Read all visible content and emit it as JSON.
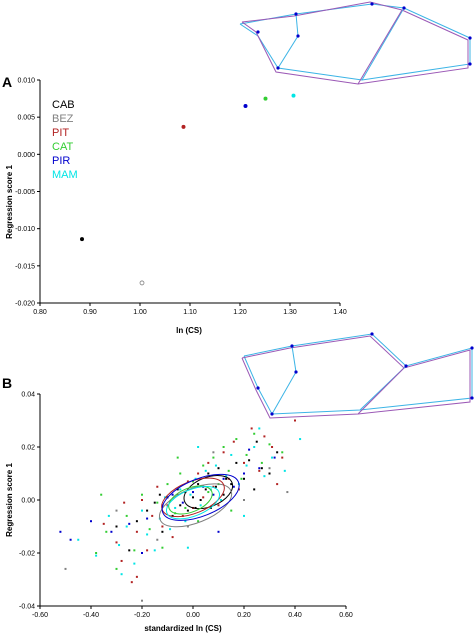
{
  "colors": {
    "CAB": "#000000",
    "BEZ": "#808080",
    "PIT": "#b22222",
    "CAT": "#32cd32",
    "PIR": "#0000cd",
    "MAM": "#00e5e5",
    "outline_a": "#3cb4e6",
    "outline_b": "#9b59b6"
  },
  "chart_data": [
    {
      "panel": "A",
      "type": "scatter",
      "xlabel": "ln (CS)",
      "ylabel": "Regression score 1",
      "xlim": [
        0.8,
        1.4
      ],
      "ylim": [
        -0.02,
        0.01
      ],
      "x_ticks": [
        "0.80",
        "0.90",
        "1.00",
        "1.10",
        "1.20",
        "1.30",
        "1.40"
      ],
      "y_ticks": [
        "0.010",
        "0.005",
        "0.000",
        "-0.005",
        "-0.010",
        "-0.015",
        "-0.020"
      ],
      "legend": [
        "CAB",
        "BEZ",
        "PIT",
        "CAT",
        "PIR",
        "MAM"
      ],
      "legend_position": "top-left",
      "series": [
        {
          "name": "CAB",
          "x": 0.884,
          "y": -0.0114
        },
        {
          "name": "BEZ",
          "x": 1.004,
          "y": -0.0173
        },
        {
          "name": "PIT",
          "x": 1.087,
          "y": 0.0037
        },
        {
          "name": "PIR",
          "x": 1.211,
          "y": 0.0065
        },
        {
          "name": "CAT",
          "x": 1.251,
          "y": 0.0075
        },
        {
          "name": "MAM",
          "x": 1.307,
          "y": 0.0079
        }
      ]
    },
    {
      "panel": "B",
      "type": "scatter",
      "xlabel": "standardized ln (CS)",
      "ylabel": "Regression score 1",
      "xlim": [
        -0.6,
        0.6
      ],
      "ylim": [
        -0.04,
        0.04
      ],
      "x_ticks": [
        "-0.60",
        "-0.40",
        "-0.20",
        "0.00",
        "0.20",
        "0.40",
        "0.60"
      ],
      "y_ticks": [
        "0.04",
        "0.02",
        "0.00",
        "-0.02",
        "-0.04"
      ],
      "series": [
        {
          "name": "CAB",
          "points": [
            [
              -0.25,
              -0.019
            ],
            [
              -0.22,
              -0.008
            ],
            [
              -0.2,
              -0.02
            ],
            [
              -0.18,
              -0.004
            ],
            [
              -0.15,
              -0.001
            ],
            [
              -0.13,
              0.002
            ],
            [
              -0.12,
              -0.012
            ],
            [
              -0.1,
              0.001
            ],
            [
              -0.08,
              -0.006
            ],
            [
              -0.06,
              0.004
            ],
            [
              -0.05,
              -0.002
            ],
            [
              -0.03,
              0.003
            ],
            [
              -0.02,
              -0.004
            ],
            [
              0.0,
              0.001
            ],
            [
              0.01,
              -0.003
            ],
            [
              0.02,
              0.006
            ],
            [
              0.03,
              0.0
            ],
            [
              0.05,
              0.004
            ],
            [
              0.06,
              0.01
            ],
            [
              0.07,
              -0.003
            ],
            [
              0.09,
              0.005
            ],
            [
              0.1,
              0.012
            ],
            [
              0.12,
              0.002
            ],
            [
              0.13,
              0.008
            ],
            [
              0.15,
              0.006
            ],
            [
              0.17,
              0.014
            ],
            [
              0.2,
              0.008
            ],
            [
              0.22,
              0.015
            ],
            [
              0.24,
              0.004
            ],
            [
              0.27,
              0.012
            ],
            [
              0.3,
              0.01
            ],
            [
              0.33,
              0.018
            ],
            [
              -0.3,
              -0.01
            ],
            [
              0.25,
              0.022
            ]
          ]
        },
        {
          "name": "BEZ",
          "points": [
            [
              -0.5,
              -0.026
            ],
            [
              -0.3,
              -0.004
            ],
            [
              -0.2,
              -0.038
            ],
            [
              -0.14,
              -0.015
            ],
            [
              -0.02,
              -0.01
            ],
            [
              0.08,
              0.018
            ],
            [
              0.2,
              0.0
            ],
            [
              0.3,
              0.012
            ],
            [
              0.37,
              0.003
            ]
          ]
        },
        {
          "name": "PIT",
          "points": [
            [
              -0.35,
              -0.009
            ],
            [
              -0.3,
              -0.016
            ],
            [
              -0.28,
              -0.023
            ],
            [
              -0.27,
              -0.001
            ],
            [
              -0.24,
              -0.031
            ],
            [
              -0.22,
              -0.012
            ],
            [
              -0.2,
              0.0
            ],
            [
              -0.18,
              -0.019
            ],
            [
              -0.16,
              -0.006
            ],
            [
              -0.14,
              0.005
            ],
            [
              -0.12,
              -0.01
            ],
            [
              -0.1,
              -0.002
            ],
            [
              -0.08,
              -0.014
            ],
            [
              -0.06,
              0.002
            ],
            [
              -0.04,
              -0.006
            ],
            [
              -0.02,
              0.007
            ],
            [
              0.0,
              -0.003
            ],
            [
              0.02,
              0.01
            ],
            [
              0.04,
              0.001
            ],
            [
              0.06,
              0.014
            ],
            [
              0.08,
              0.005
            ],
            [
              0.1,
              -0.002
            ],
            [
              0.12,
              0.018
            ],
            [
              0.14,
              0.008
            ],
            [
              0.16,
              0.022
            ],
            [
              0.18,
              0.004
            ],
            [
              0.2,
              0.014
            ],
            [
              0.23,
              0.027
            ],
            [
              0.26,
              0.011
            ],
            [
              0.28,
              0.024
            ],
            [
              0.31,
              0.02
            ],
            [
              0.35,
              0.016
            ],
            [
              0.4,
              0.03
            ],
            [
              0.33,
              0.006
            ],
            [
              -0.22,
              -0.029
            ]
          ]
        },
        {
          "name": "CAT",
          "points": [
            [
              -0.38,
              -0.02
            ],
            [
              -0.34,
              -0.012
            ],
            [
              -0.3,
              -0.026
            ],
            [
              -0.26,
              -0.006
            ],
            [
              -0.23,
              -0.019
            ],
            [
              -0.2,
              0.002
            ],
            [
              -0.17,
              -0.011
            ],
            [
              -0.14,
              -0.001
            ],
            [
              -0.12,
              -0.018
            ],
            [
              -0.1,
              0.006
            ],
            [
              -0.07,
              -0.005
            ],
            [
              -0.05,
              0.01
            ],
            [
              -0.03,
              -0.003
            ],
            [
              0.0,
              0.007
            ],
            [
              0.02,
              -0.008
            ],
            [
              0.04,
              0.013
            ],
            [
              0.06,
              0.003
            ],
            [
              0.08,
              0.016
            ],
            [
              0.1,
              0.006
            ],
            [
              0.12,
              0.02
            ],
            [
              0.14,
              0.011
            ],
            [
              0.17,
              0.023
            ],
            [
              0.19,
              0.008
            ],
            [
              0.21,
              0.017
            ],
            [
              0.24,
              0.025
            ],
            [
              0.27,
              0.014
            ],
            [
              0.3,
              0.021
            ],
            [
              0.35,
              0.018
            ],
            [
              -0.36,
              0.002
            ],
            [
              0.15,
              -0.004
            ],
            [
              -0.06,
              0.016
            ]
          ]
        },
        {
          "name": "PIR",
          "points": [
            [
              -0.52,
              -0.012
            ],
            [
              -0.48,
              -0.015
            ],
            [
              -0.4,
              -0.008
            ],
            [
              -0.32,
              -0.012
            ],
            [
              -0.25,
              -0.009
            ],
            [
              -0.18,
              -0.007
            ],
            [
              -0.12,
              -0.002
            ],
            [
              -0.08,
              0.002
            ],
            [
              -0.04,
              -0.001
            ],
            [
              0.0,
              0.003
            ],
            [
              0.04,
              0.005
            ],
            [
              0.08,
              0.002
            ],
            [
              0.12,
              0.008
            ],
            [
              0.16,
              0.005
            ],
            [
              0.2,
              0.01
            ],
            [
              0.26,
              0.012
            ],
            [
              0.32,
              0.016
            ],
            [
              0.1,
              -0.012
            ],
            [
              -0.2,
              -0.02
            ],
            [
              0.22,
              0.019
            ]
          ]
        },
        {
          "name": "MAM",
          "points": [
            [
              -0.45,
              -0.015
            ],
            [
              -0.38,
              -0.021
            ],
            [
              -0.33,
              -0.006
            ],
            [
              -0.29,
              -0.017
            ],
            [
              -0.26,
              -0.01
            ],
            [
              -0.23,
              -0.024
            ],
            [
              -0.2,
              -0.004
            ],
            [
              -0.18,
              -0.013
            ],
            [
              -0.15,
              -0.019
            ],
            [
              -0.13,
              -0.007
            ],
            [
              -0.11,
              0.001
            ],
            [
              -0.09,
              -0.011
            ],
            [
              -0.07,
              -0.003
            ],
            [
              -0.05,
              0.004
            ],
            [
              -0.03,
              -0.008
            ],
            [
              -0.01,
              0.002
            ],
            [
              0.01,
              0.008
            ],
            [
              0.03,
              -0.002
            ],
            [
              0.05,
              0.011
            ],
            [
              0.07,
              0.004
            ],
            [
              0.09,
              0.013
            ],
            [
              0.11,
              0.0
            ],
            [
              0.13,
              0.009
            ],
            [
              0.15,
              0.017
            ],
            [
              0.18,
              0.006
            ],
            [
              0.21,
              0.013
            ],
            [
              0.24,
              0.02
            ],
            [
              0.28,
              0.009
            ],
            [
              0.31,
              0.016
            ],
            [
              0.36,
              0.011
            ],
            [
              0.42,
              0.023
            ],
            [
              -0.02,
              -0.018
            ],
            [
              0.2,
              -0.006
            ],
            [
              -0.28,
              -0.028
            ],
            [
              0.02,
              0.02
            ],
            [
              0.26,
              0.027
            ]
          ]
        }
      ],
      "ellipses": [
        {
          "name": "CAB",
          "cx": 0.06,
          "cy": 0.003,
          "rx": 0.1,
          "ry": 0.0055
        },
        {
          "name": "BEZ",
          "cx": 0.01,
          "cy": -0.002,
          "rx": 0.15,
          "ry": 0.0065
        },
        {
          "name": "PIT",
          "cx": 0.0,
          "cy": 0.001,
          "rx": 0.13,
          "ry": 0.006
        },
        {
          "name": "CAT",
          "cx": -0.01,
          "cy": 0.0,
          "rx": 0.09,
          "ry": 0.0045
        },
        {
          "name": "PIR",
          "cx": 0.03,
          "cy": 0.001,
          "rx": 0.16,
          "ry": 0.007
        },
        {
          "name": "MAM",
          "cx": 0.0,
          "cy": -0.001,
          "rx": 0.11,
          "ry": 0.005
        }
      ]
    }
  ]
}
